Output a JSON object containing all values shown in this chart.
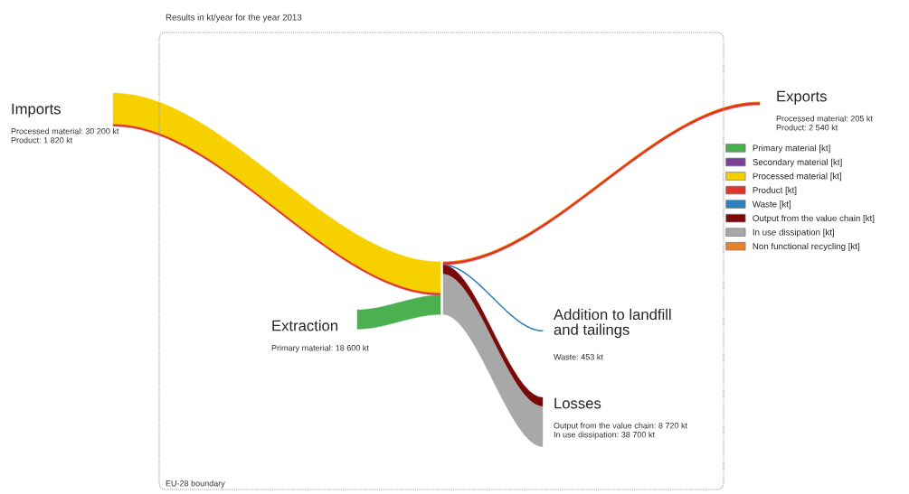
{
  "chart_data": {
    "type": "other",
    "title": "Results in kt/year for the year 2013",
    "categories": [
      "Imports",
      "Exports",
      "Extraction",
      "Addition to landfill\nand tailings",
      "Losses"
    ],
    "series": [
      {
        "name": "Primary material [kt]",
        "color": "#4caf50",
        "values": [
          null,
          null,
          18600,
          null,
          null
        ],
        "value_labels": [
          null,
          null,
          "Primary material: 18 600 kt",
          null,
          null
        ]
      },
      {
        "name": "Secondary material [kt]",
        "color": "#7b3f98",
        "values": [
          null,
          null,
          null,
          null,
          null
        ]
      },
      {
        "name": "Processed material [kt]",
        "color": "#f7d000",
        "values": [
          30200,
          205,
          null,
          null,
          null
        ],
        "value_labels": [
          "Processed material: 30 200 kt",
          "Processed material: 205 kt",
          null,
          null,
          null
        ]
      },
      {
        "name": "Product [kt]",
        "color": "#e0352b",
        "values": [
          1820,
          2540,
          null,
          null,
          null
        ],
        "value_labels": [
          "Product: 1 820 kt",
          "Product: 2 540 kt",
          null,
          null,
          null
        ]
      },
      {
        "name": "Waste [kt]",
        "color": "#2f80c0",
        "values": [
          null,
          null,
          null,
          453,
          null
        ],
        "value_labels": [
          null,
          null,
          null,
          "Waste: 453 kt",
          null
        ]
      },
      {
        "name": "Output from the value chain [kt]",
        "color": "#7a0a0a",
        "values": [
          null,
          null,
          null,
          null,
          8720
        ],
        "value_labels": [
          null,
          null,
          null,
          null,
          "Output from the value chain: 8 720 kt"
        ]
      },
      {
        "name": "In use dissipation [kt]",
        "color": "#a8a8a8",
        "values": [
          null,
          null,
          null,
          null,
          38700
        ],
        "value_labels": [
          null,
          null,
          null,
          null,
          "In use dissipation: 38 700 kt"
        ]
      },
      {
        "name": "Non functional recycling [kt]",
        "color": "#e8822a",
        "values": [
          null,
          null,
          null,
          null,
          null
        ]
      }
    ],
    "annotations": [
      "EU-28 boundary"
    ],
    "legend": "right"
  }
}
